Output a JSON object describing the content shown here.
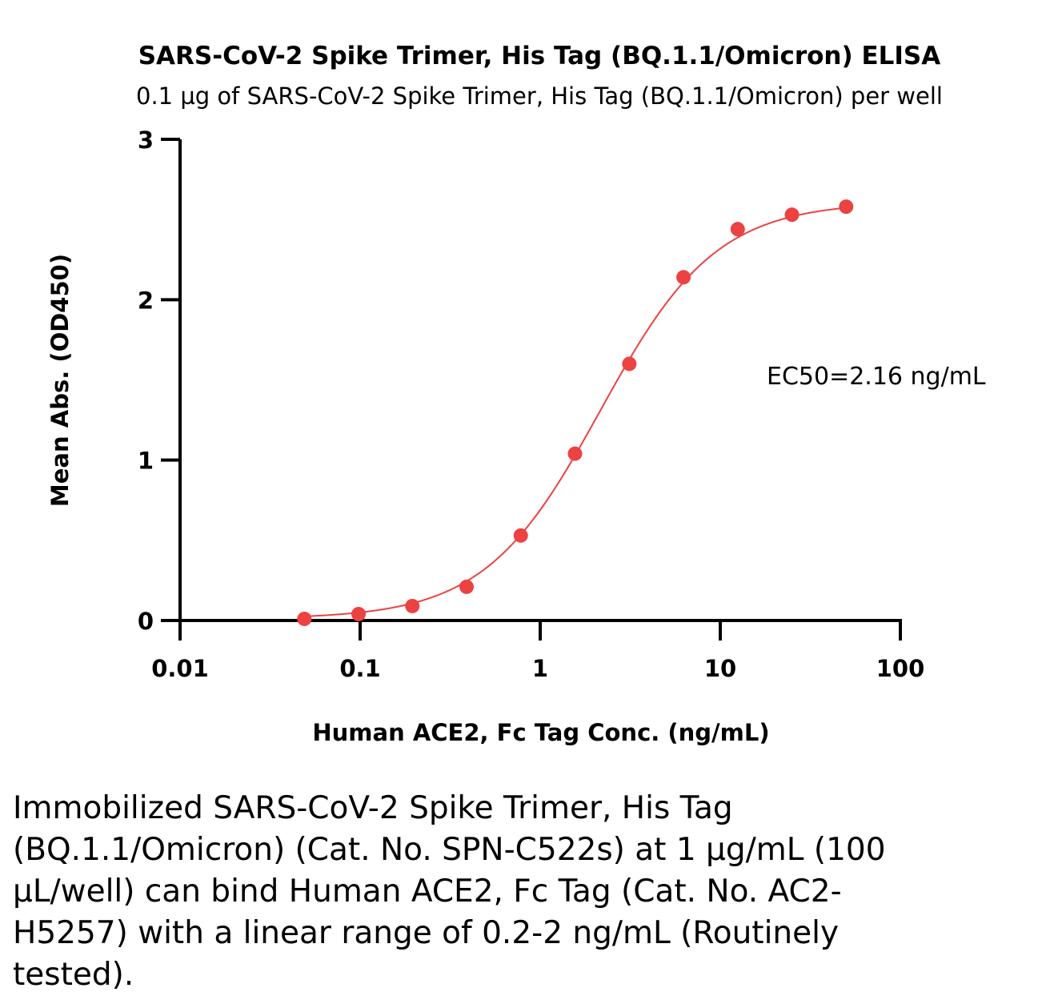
{
  "chart_data": {
    "type": "scatter",
    "title": "SARS-CoV-2 Spike Trimer, His Tag (BQ.1.1/Omicron) ELISA",
    "subtitle": "0.1 µg of SARS-CoV-2 Spike Trimer, His Tag (BQ.1.1/Omicron) per well",
    "xlabel": "Human ACE2, Fc Tag Conc. (ng/mL)",
    "ylabel": "Mean Abs. (OD450)",
    "xscale": "log",
    "xlim": [
      0.01,
      100
    ],
    "ylim": [
      0,
      3
    ],
    "xticks": [
      0.01,
      0.1,
      1,
      10,
      100
    ],
    "xtick_labels": [
      "0.01",
      "0.1",
      "1",
      "10",
      "100"
    ],
    "yticks": [
      0,
      1,
      2,
      3
    ],
    "ytick_labels": [
      "0",
      "1",
      "2",
      "3"
    ],
    "grid": false,
    "annotation": "EC50=2.16 ng/mL",
    "color": "#ec4242",
    "x": [
      0.049,
      0.098,
      0.195,
      0.39,
      0.78,
      1.56,
      3.125,
      6.25,
      12.5,
      25,
      50
    ],
    "y": [
      0.01,
      0.04,
      0.09,
      0.21,
      0.53,
      1.04,
      1.6,
      2.14,
      2.44,
      2.53,
      2.58
    ],
    "fit": {
      "bottom": 0.01,
      "top": 2.61,
      "ec50": 2.16,
      "hill": 1.35
    }
  },
  "caption": "Immobilized SARS-CoV-2 Spike Trimer, His Tag (BQ.1.1/Omicron) (Cat. No. SPN-C522s) at 1 µg/mL (100 µL/well) can bind Human ACE2, Fc Tag (Cat. No. AC2-H5257) with a linear range of 0.2-2 ng/mL (Routinely tested)."
}
